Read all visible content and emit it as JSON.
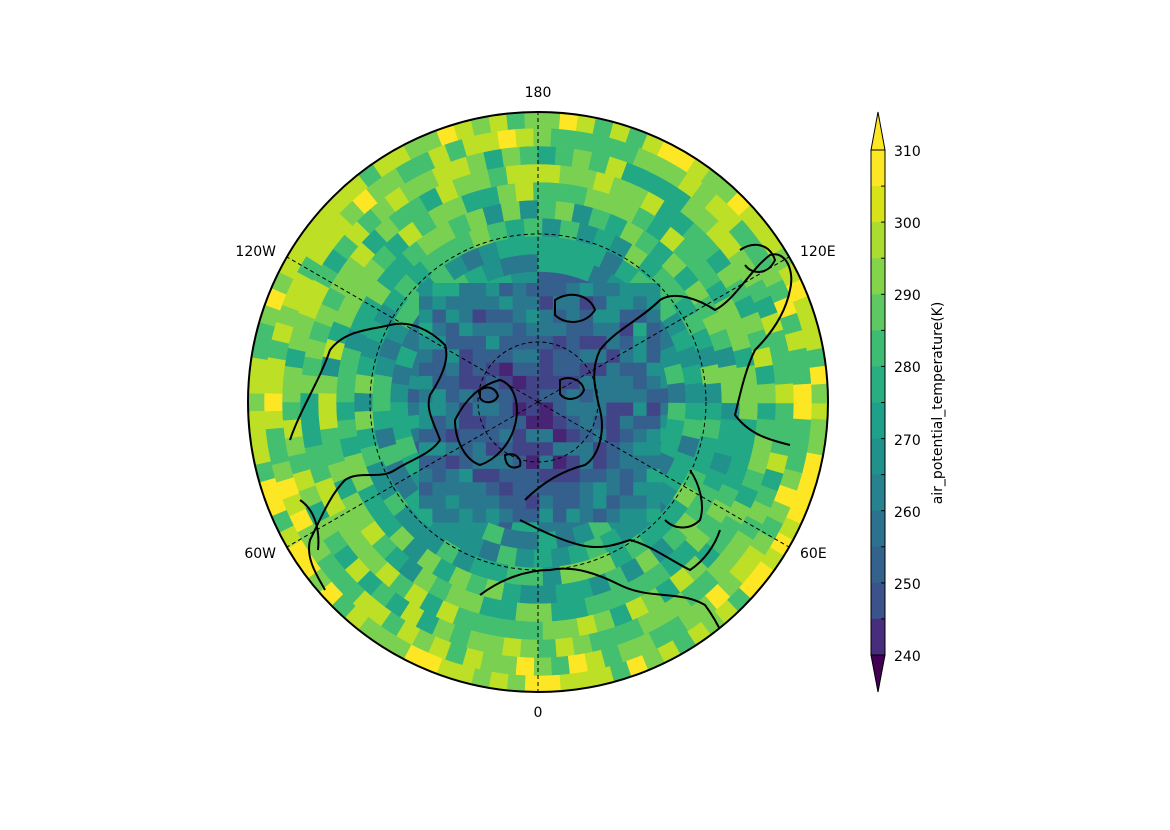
{
  "figure": {
    "projection": "north polar stereographic",
    "background": "#ffffff"
  },
  "map": {
    "meridian_labels": [
      "180",
      "120E",
      "60E",
      "0",
      "60W",
      "120W"
    ],
    "gridline_style": "dashed",
    "parallel_circles": 2,
    "coastlines": true
  },
  "colorbar": {
    "label": "air_potential_temperature(K)",
    "tick_labels": [
      "240",
      "250",
      "260",
      "270",
      "280",
      "290",
      "300",
      "310"
    ],
    "extend": "both",
    "colormap": "viridis",
    "levels": [
      240,
      245,
      250,
      255,
      260,
      265,
      270,
      275,
      280,
      285,
      290,
      295,
      300,
      305,
      310
    ],
    "colors": [
      "#440154",
      "#482475",
      "#414487",
      "#355f8d",
      "#2a788e",
      "#21918c",
      "#22a884",
      "#44bf70",
      "#7ad151",
      "#bddf26",
      "#fde725"
    ]
  },
  "chart_data": {
    "type": "heatmap",
    "variable": "air_potential_temperature",
    "units": "K",
    "value_range": [
      240,
      310
    ],
    "colorbar_ticks": [
      240,
      250,
      260,
      270,
      280,
      290,
      300,
      310
    ],
    "meridians": [
      "180",
      "120E",
      "60E",
      "0",
      "60W",
      "120W"
    ],
    "pattern": "cold core (about 245-265 K) over the polar cap inside the inner circle; mixed 270-290 K ring at mid latitudes; warm rim (300-310 K) toward the outer boundary"
  }
}
